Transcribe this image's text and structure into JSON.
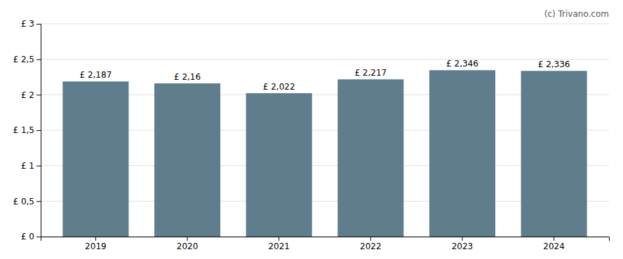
{
  "chart_data": {
    "type": "bar",
    "categories": [
      "2019",
      "2020",
      "2021",
      "2022",
      "2023",
      "2024"
    ],
    "values": [
      2.187,
      2.16,
      2.022,
      2.217,
      2.346,
      2.336
    ],
    "value_labels": [
      "£ 2,187",
      "£ 2,16",
      "£ 2,022",
      "£ 2,217",
      "£ 2,346",
      "£ 2,336"
    ],
    "data_labels": true,
    "color": "#5f7d8c",
    "ylim": [
      0,
      3.0
    ],
    "yticks": [
      {
        "value": 0,
        "label": "£ 0"
      },
      {
        "value": 0.5,
        "label": "£ 0,5"
      },
      {
        "value": 1.0,
        "label": "£ 1"
      },
      {
        "value": 1.5,
        "label": "£ 1,5"
      },
      {
        "value": 2.0,
        "label": "£ 2"
      },
      {
        "value": 2.5,
        "label": "£ 2,5"
      },
      {
        "value": 3.0,
        "label": "£ 3"
      }
    ],
    "grid": true,
    "annotations": [
      "(c) Trivano.com"
    ]
  }
}
